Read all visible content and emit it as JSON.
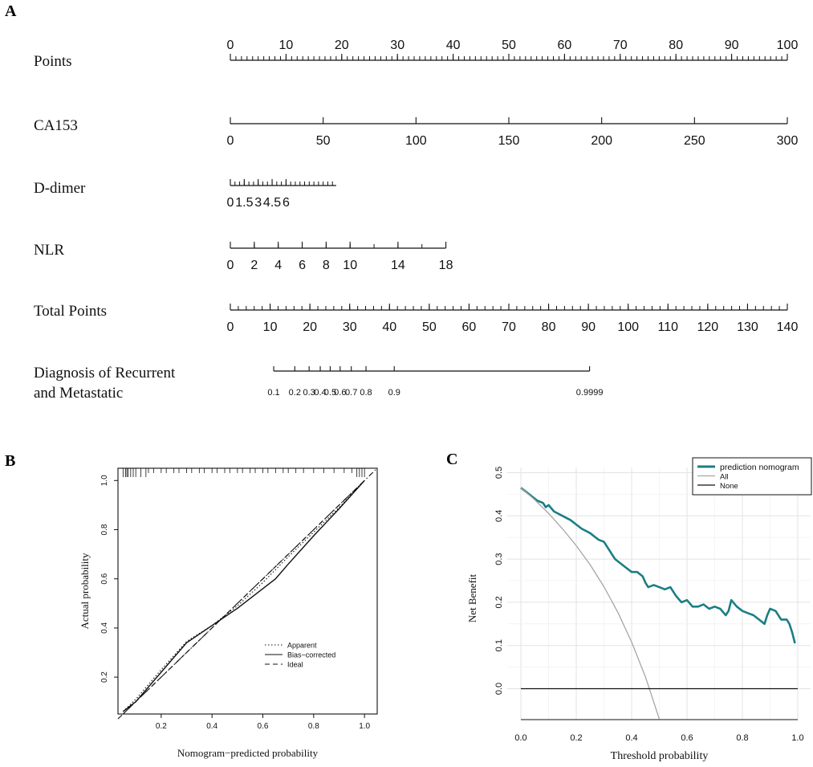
{
  "panel_labels": {
    "a": "A",
    "b": "B",
    "c": "C"
  },
  "colors": {
    "teal": "#1a7f84",
    "gray": "#a6a6a6",
    "black": "#111111"
  },
  "chart_data": [
    {
      "type": "nomogram",
      "panel": "A",
      "rows": [
        {
          "name": "Points",
          "scale_min": 0,
          "scale_max": 100,
          "tick_labels": [
            "0",
            "10",
            "20",
            "30",
            "40",
            "50",
            "60",
            "70",
            "80",
            "90",
            "100"
          ],
          "tick_values": [
            0,
            10,
            20,
            30,
            40,
            50,
            60,
            70,
            80,
            90,
            100
          ],
          "minor_step": 1,
          "labels_above": true
        },
        {
          "name": "CA153",
          "scale_min": 0,
          "scale_max": 300,
          "tick_labels": [
            "0",
            "50",
            "100",
            "150",
            "200",
            "250",
            "300"
          ],
          "tick_values": [
            0,
            50,
            100,
            150,
            200,
            250,
            300
          ],
          "axis_max": 300
        },
        {
          "name": "D-dimer",
          "scale_min": 0,
          "scale_max": 300,
          "axis_max": 57,
          "tick_labels": [
            "0",
            "1.5",
            "3",
            "4.5",
            "6"
          ],
          "tick_values": [
            0,
            7.5,
            15,
            22.5,
            30
          ],
          "minor_step": 2.5
        },
        {
          "name": "NLR",
          "scale_min": 0,
          "scale_max": 300,
          "axis_max": 116,
          "tick_labels": [
            "0",
            "2",
            "4",
            "6",
            "8",
            "10",
            "14",
            "18"
          ],
          "tick_values": [
            0,
            12.9,
            25.8,
            38.7,
            51.6,
            64.5,
            90.3,
            116.1
          ],
          "minor_step": 12.9
        },
        {
          "name": "Total Points",
          "scale_min": 0,
          "scale_max": 140,
          "tick_labels": [
            "0",
            "10",
            "20",
            "30",
            "40",
            "50",
            "60",
            "70",
            "80",
            "90",
            "100",
            "110",
            "120",
            "130",
            "140"
          ],
          "tick_values": [
            0,
            10,
            20,
            30,
            40,
            50,
            60,
            70,
            80,
            90,
            100,
            110,
            120,
            130,
            140
          ],
          "minor_step": 2
        },
        {
          "name_line1": "Diagnosis of  Recurrent",
          "name_line2": "and Metastatic",
          "scale_min": 0,
          "scale_max": 140,
          "tick_labels": [
            "0.1",
            "0.2",
            "0.3",
            "0.4",
            "0.5",
            "0.6",
            "0.7",
            "0.8",
            "0.9",
            "0.9999"
          ],
          "tick_values": [
            10.9,
            16.2,
            19.8,
            22.6,
            25.1,
            27.6,
            30.4,
            34.1,
            41.2,
            90.3
          ]
        }
      ]
    },
    {
      "type": "line",
      "panel": "B",
      "title": "",
      "xlabel": "Nomogram−predicted probability",
      "ylabel": "Actual probability",
      "xlim": [
        0.03,
        1.05
      ],
      "ylim": [
        0.05,
        1.05
      ],
      "xticks": [
        "0.2",
        "0.4",
        "0.6",
        "0.8",
        "1.0"
      ],
      "yticks": [
        "0.2",
        "0.4",
        "0.6",
        "0.8",
        "1.0"
      ],
      "legend": [
        "Apparent",
        "Bias−corrected",
        "Ideal"
      ],
      "series": [
        {
          "name": "Apparent",
          "style": "dotted",
          "x": [
            0.05,
            0.1,
            0.2,
            0.3,
            0.4,
            0.5,
            0.6,
            0.7,
            0.8,
            0.9,
            1.0
          ],
          "y": [
            0.06,
            0.11,
            0.23,
            0.345,
            0.41,
            0.49,
            0.585,
            0.69,
            0.79,
            0.89,
            1.0
          ]
        },
        {
          "name": "Bias−corrected",
          "style": "solid",
          "x": [
            0.05,
            0.1,
            0.2,
            0.3,
            0.4,
            0.5,
            0.6,
            0.65,
            0.7,
            0.8,
            0.9,
            1.0
          ],
          "y": [
            0.06,
            0.1,
            0.22,
            0.34,
            0.41,
            0.48,
            0.56,
            0.6,
            0.66,
            0.775,
            0.885,
            1.0
          ]
        },
        {
          "name": "Ideal",
          "style": "dashed",
          "x": [
            0.05,
            1.0
          ],
          "y": [
            0.05,
            1.0
          ]
        },
        {
          "name": "diagonal",
          "style": "dotdash",
          "x": [
            0.03,
            1.05
          ],
          "y": [
            0.03,
            1.05
          ]
        }
      ],
      "rug": [
        0.05,
        0.06,
        0.065,
        0.07,
        0.08,
        0.09,
        0.1,
        0.12,
        0.14,
        0.15,
        0.17,
        0.2,
        0.22,
        0.25,
        0.27,
        0.3,
        0.32,
        0.35,
        0.37,
        0.4,
        0.42,
        0.45,
        0.47,
        0.5,
        0.52,
        0.55,
        0.57,
        0.6,
        0.62,
        0.65,
        0.68,
        0.7,
        0.73,
        0.76,
        0.8,
        0.84,
        0.88,
        0.92,
        0.95,
        0.97,
        0.98,
        0.99,
        1.0
      ]
    },
    {
      "type": "line",
      "panel": "C",
      "title": "",
      "xlabel": "Threshold probability",
      "ylabel": "Net Benefit",
      "xlim": [
        0,
        1
      ],
      "ylim": [
        -0.075,
        0.5
      ],
      "xticks": [
        "0.0",
        "0.2",
        "0.4",
        "0.6",
        "0.8",
        "1.0"
      ],
      "yticks": [
        "0.0",
        "0.1",
        "0.2",
        "0.3",
        "0.4",
        "0.5"
      ],
      "ytick_values": [
        0,
        0.1,
        0.2,
        0.3,
        0.4,
        0.5
      ],
      "legend": [
        "prediction nomogram",
        "All",
        "None"
      ],
      "series": [
        {
          "name": "prediction nomogram",
          "color": "#1a7f84",
          "x": [
            0,
            0.02,
            0.04,
            0.06,
            0.08,
            0.09,
            0.1,
            0.12,
            0.15,
            0.18,
            0.2,
            0.22,
            0.25,
            0.28,
            0.3,
            0.32,
            0.34,
            0.36,
            0.38,
            0.4,
            0.42,
            0.44,
            0.45,
            0.46,
            0.48,
            0.5,
            0.52,
            0.54,
            0.56,
            0.58,
            0.6,
            0.62,
            0.64,
            0.66,
            0.68,
            0.7,
            0.72,
            0.74,
            0.75,
            0.76,
            0.78,
            0.8,
            0.82,
            0.84,
            0.86,
            0.88,
            0.89,
            0.9,
            0.92,
            0.94,
            0.96,
            0.97,
            0.98,
            0.99
          ],
          "y": [
            0.465,
            0.455,
            0.445,
            0.435,
            0.43,
            0.42,
            0.425,
            0.41,
            0.4,
            0.39,
            0.38,
            0.37,
            0.36,
            0.345,
            0.34,
            0.32,
            0.3,
            0.29,
            0.28,
            0.27,
            0.27,
            0.26,
            0.245,
            0.235,
            0.24,
            0.235,
            0.23,
            0.235,
            0.215,
            0.2,
            0.205,
            0.19,
            0.19,
            0.195,
            0.185,
            0.19,
            0.185,
            0.17,
            0.18,
            0.205,
            0.19,
            0.18,
            0.175,
            0.17,
            0.16,
            0.15,
            0.17,
            0.185,
            0.18,
            0.16,
            0.16,
            0.15,
            0.13,
            0.105
          ]
        },
        {
          "name": "All",
          "color": "#a6a6a6",
          "x": [
            0,
            0.05,
            0.1,
            0.15,
            0.2,
            0.25,
            0.3,
            0.35,
            0.4,
            0.45,
            0.5
          ],
          "y": [
            0.465,
            0.437,
            0.406,
            0.37,
            0.331,
            0.287,
            0.236,
            0.177,
            0.108,
            0.027,
            -0.07
          ]
        },
        {
          "name": "None",
          "color": "#111111",
          "x": [
            0,
            1
          ],
          "y": [
            0,
            0
          ]
        }
      ]
    }
  ]
}
